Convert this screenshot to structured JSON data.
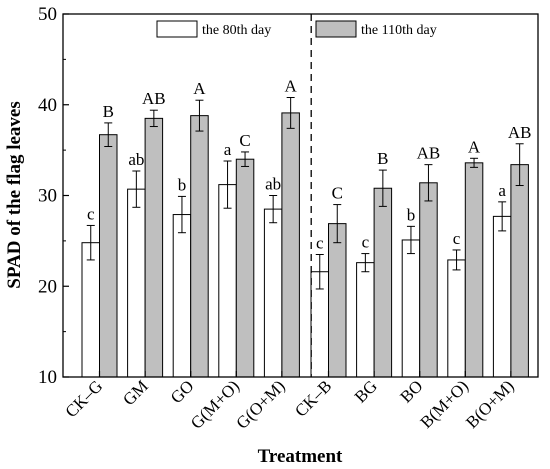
{
  "chart_data": {
    "type": "bar",
    "xlabel": "Treatment",
    "ylabel": "SPAD of the flag leaves",
    "ylim": [
      10,
      50
    ],
    "yticks": [
      10,
      20,
      30,
      40,
      50
    ],
    "legend_position": "top",
    "groups_divider_after_index": 4,
    "categories": [
      "CK–G",
      "GM",
      "GO",
      "G(M+O)",
      "G(O+M)",
      "CK–B",
      "BG",
      "BO",
      "B(M+O)",
      "B(O+M)"
    ],
    "series": [
      {
        "name": "the 80th day",
        "color": "#ffffff",
        "values": [
          24.8,
          30.7,
          27.9,
          31.2,
          28.5,
          21.6,
          22.6,
          25.1,
          22.9,
          27.7
        ],
        "errors": [
          1.9,
          2.0,
          2.0,
          2.6,
          1.5,
          1.9,
          1.0,
          1.5,
          1.1,
          1.6
        ],
        "labels": [
          "c",
          "ab",
          "b",
          "a",
          "ab",
          "c",
          "c",
          "b",
          "c",
          "a"
        ]
      },
      {
        "name": "the 110th day",
        "color": "#bfbfbf",
        "values": [
          36.7,
          38.5,
          38.8,
          34.0,
          39.1,
          26.9,
          30.8,
          31.4,
          33.6,
          33.4
        ],
        "errors": [
          1.3,
          0.9,
          1.7,
          0.8,
          1.7,
          2.1,
          2.0,
          2.0,
          0.5,
          2.3
        ],
        "labels": [
          "B",
          "AB",
          "A",
          "C",
          "A",
          "C",
          "B",
          "AB",
          "A",
          "AB"
        ]
      }
    ]
  }
}
